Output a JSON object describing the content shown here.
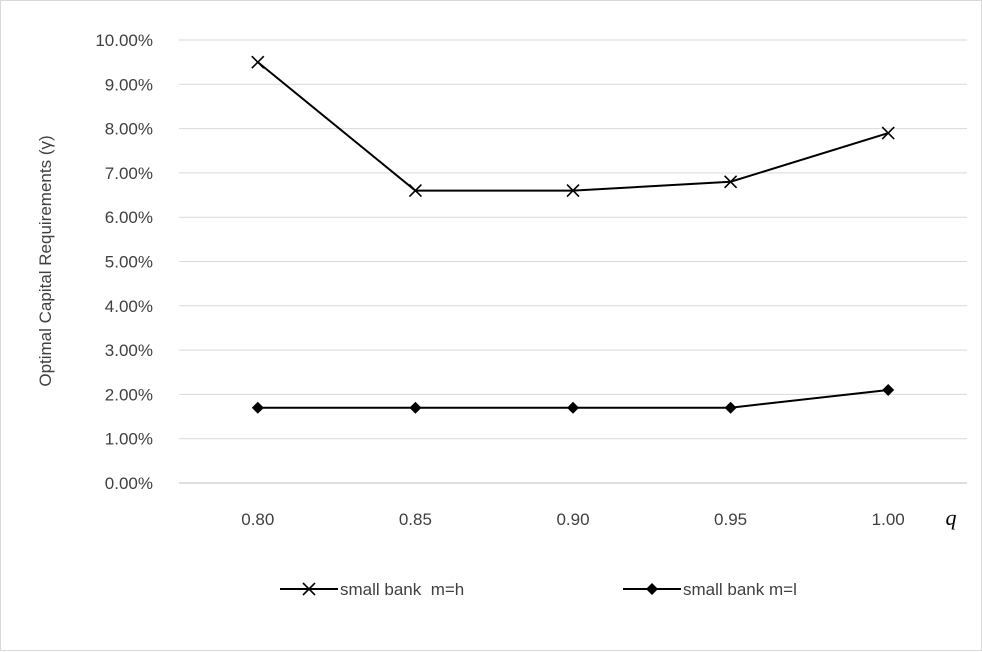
{
  "chart_data": {
    "type": "line",
    "title": "",
    "xlabel": "q",
    "ylabel": "Optimal Capital Requirements (γ)",
    "categories": [
      "0.80",
      "0.85",
      "0.90",
      "0.95",
      "1.00"
    ],
    "ylim": [
      0,
      0.1
    ],
    "yticks": [
      "0.00%",
      "1.00%",
      "2.00%",
      "3.00%",
      "4.00%",
      "5.00%",
      "6.00%",
      "7.00%",
      "8.00%",
      "9.00%",
      "10.00%"
    ],
    "grid": true,
    "legend_position": "bottom",
    "series": [
      {
        "name": "small bank  m=h",
        "marker": "x",
        "color": "#000000",
        "values": [
          0.095,
          0.066,
          0.066,
          0.068,
          0.079
        ]
      },
      {
        "name": "small bank m=l",
        "marker": "diamond",
        "color": "#000000",
        "values": [
          0.017,
          0.017,
          0.017,
          0.017,
          0.021
        ]
      }
    ]
  }
}
